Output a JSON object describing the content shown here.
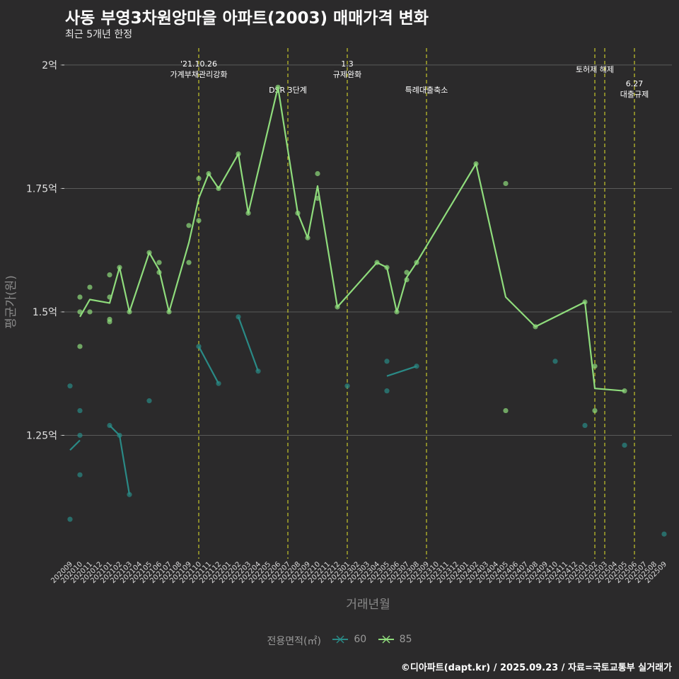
{
  "header": {
    "title": "사동 부영3차원앙마을 아파트(2003) 매매가격 변화",
    "subtitle": "최근 5개년 한정"
  },
  "caption": "©디아파트(dapt.kr) / 2025.09.23 / 자료=국토교통부 실거래가",
  "legend": {
    "title": "전용면적(㎡)",
    "items": [
      {
        "label": "60",
        "color": "#2a8a86"
      },
      {
        "label": "85",
        "color": "#8fdc7c"
      }
    ]
  },
  "chart_data": {
    "type": "line",
    "title": "사동 부영3차원앙마을 아파트(2003) 매매가격 변화",
    "xlabel": "거래년월",
    "ylabel": "평균가(원)",
    "ylim": [
      1.0,
      2.04
    ],
    "categories": [
      "202009",
      "202010",
      "202011",
      "202012",
      "202101",
      "202102",
      "202103",
      "202104",
      "202105",
      "202106",
      "202107",
      "202108",
      "202109",
      "202110",
      "202111",
      "202112",
      "202201",
      "202202",
      "202203",
      "202204",
      "202205",
      "202206",
      "202207",
      "202208",
      "202209",
      "202210",
      "202211",
      "202212",
      "202301",
      "202302",
      "202303",
      "202304",
      "202305",
      "202306",
      "202307",
      "202308",
      "202309",
      "202310",
      "202311",
      "202312",
      "202401",
      "202402",
      "202403",
      "202404",
      "202405",
      "202406",
      "202407",
      "202408",
      "202409",
      "202410",
      "202411",
      "202412",
      "202501",
      "202502",
      "202503",
      "202504",
      "202505",
      "202506",
      "202507",
      "202508",
      "202509"
    ],
    "y_ticks": [
      {
        "value": 1.25,
        "label": "1.25억"
      },
      {
        "value": 1.5,
        "label": "1.5억"
      },
      {
        "value": 1.75,
        "label": "1.75억"
      },
      {
        "value": 2.0,
        "label": "2억"
      }
    ],
    "annotations": [
      {
        "x": 13,
        "lines": [
          "'21.10.26",
          "가계부채관리강화"
        ],
        "row": 0
      },
      {
        "x": 22,
        "lines": [
          "DSR 3단계"
        ],
        "row": 2
      },
      {
        "x": 28,
        "lines": [
          "1.3",
          "규제완화"
        ],
        "row": 0
      },
      {
        "x": 36,
        "lines": [
          "특례대출축소"
        ],
        "row": 2
      },
      {
        "x": 53,
        "lines": [
          "토허제 해제"
        ],
        "row": 1
      },
      {
        "x": 54,
        "lines": [],
        "row": 1
      },
      {
        "x": 57,
        "lines": [
          "6.27",
          "대출규제"
        ],
        "row": 3
      }
    ],
    "series": [
      {
        "name": "60",
        "color": "#2a8a86",
        "lines": [
          [
            [
              0,
              1.22
            ],
            [
              1,
              1.24
            ]
          ],
          [
            [
              4,
              1.27
            ],
            [
              5,
              1.25
            ],
            [
              6,
              1.13
            ]
          ],
          [
            [
              13,
              1.43
            ],
            [
              15,
              1.355
            ]
          ],
          [
            [
              17,
              1.49
            ],
            [
              19,
              1.38
            ]
          ],
          [
            [
              32,
              1.37
            ],
            [
              35,
              1.39
            ]
          ]
        ],
        "points": [
          [
            0,
            1.35
          ],
          [
            0,
            1.08
          ],
          [
            1,
            1.3
          ],
          [
            1,
            1.25
          ],
          [
            1,
            1.17
          ],
          [
            4,
            1.27
          ],
          [
            5,
            1.25
          ],
          [
            6,
            1.13
          ],
          [
            8,
            1.32
          ],
          [
            13,
            1.43
          ],
          [
            15,
            1.355
          ],
          [
            17,
            1.49
          ],
          [
            19,
            1.38
          ],
          [
            28,
            1.35
          ],
          [
            32,
            1.4
          ],
          [
            32,
            1.34
          ],
          [
            35,
            1.39
          ],
          [
            49,
            1.4
          ],
          [
            52,
            1.27
          ],
          [
            56,
            1.23
          ],
          [
            60,
            1.05
          ]
        ]
      },
      {
        "name": "85",
        "color": "#8fdc7c",
        "lines": [
          [
            [
              1,
              1.49
            ],
            [
              2,
              1.525
            ],
            [
              4,
              1.518
            ],
            [
              5,
              1.59
            ],
            [
              6,
              1.5
            ],
            [
              8,
              1.62
            ],
            [
              9,
              1.585
            ],
            [
              10,
              1.5
            ],
            [
              12,
              1.64
            ],
            [
              13,
              1.73
            ],
            [
              14,
              1.78
            ],
            [
              15,
              1.75
            ],
            [
              17,
              1.82
            ],
            [
              18,
              1.7
            ],
            [
              21,
              1.955
            ],
            [
              23,
              1.7
            ],
            [
              24,
              1.65
            ],
            [
              25,
              1.755
            ],
            [
              27,
              1.51
            ],
            [
              31,
              1.6
            ],
            [
              32,
              1.59
            ],
            [
              33,
              1.5
            ],
            [
              34,
              1.57
            ],
            [
              35,
              1.6
            ],
            [
              41,
              1.8
            ],
            [
              44,
              1.53
            ],
            [
              47,
              1.47
            ],
            [
              52,
              1.52
            ],
            [
              53,
              1.345
            ],
            [
              56,
              1.34
            ]
          ]
        ],
        "points": [
          [
            1,
            1.53
          ],
          [
            1,
            1.5
          ],
          [
            1,
            1.43
          ],
          [
            2,
            1.55
          ],
          [
            2,
            1.5
          ],
          [
            4,
            1.575
          ],
          [
            4,
            1.53
          ],
          [
            4,
            1.485
          ],
          [
            4,
            1.48
          ],
          [
            5,
            1.59
          ],
          [
            6,
            1.5
          ],
          [
            8,
            1.62
          ],
          [
            9,
            1.6
          ],
          [
            9,
            1.58
          ],
          [
            10,
            1.5
          ],
          [
            12,
            1.675
          ],
          [
            12,
            1.6
          ],
          [
            13,
            1.77
          ],
          [
            13,
            1.685
          ],
          [
            14,
            1.78
          ],
          [
            15,
            1.75
          ],
          [
            17,
            1.82
          ],
          [
            18,
            1.7
          ],
          [
            21,
            1.955
          ],
          [
            23,
            1.7
          ],
          [
            24,
            1.65
          ],
          [
            25,
            1.78
          ],
          [
            25,
            1.73
          ],
          [
            27,
            1.51
          ],
          [
            31,
            1.6
          ],
          [
            32,
            1.59
          ],
          [
            33,
            1.5
          ],
          [
            34,
            1.58
          ],
          [
            34,
            1.565
          ],
          [
            35,
            1.6
          ],
          [
            41,
            1.8
          ],
          [
            44,
            1.76
          ],
          [
            44,
            1.3
          ],
          [
            47,
            1.47
          ],
          [
            52,
            1.52
          ],
          [
            53,
            1.39
          ],
          [
            53,
            1.3
          ],
          [
            56,
            1.34
          ]
        ]
      }
    ]
  }
}
